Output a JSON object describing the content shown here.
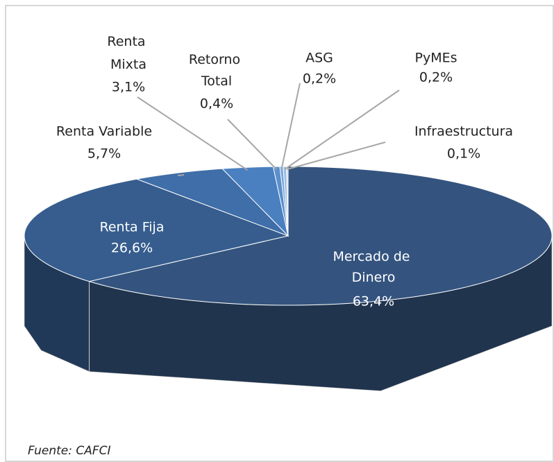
{
  "chart_data": {
    "type": "pie",
    "categories": [
      "Mercado de Dinero",
      "Renta Fija",
      "Renta Variable",
      "Renta Mixta",
      "Retorno Total",
      "ASG",
      "PyMEs",
      "Infraestructura"
    ],
    "values": [
      63.4,
      26.6,
      5.7,
      3.1,
      0.4,
      0.2,
      0.2,
      0.1
    ],
    "value_labels": [
      "63,4%",
      "26,6%",
      "5,7%",
      "3,1%",
      "0,4%",
      "0,2%",
      "0,2%",
      "0,1%"
    ],
    "colors": [
      "#34547f",
      "#365d8e",
      "#3f6ea8",
      "#4a80c0",
      "#5a8fcc",
      "#7aa6d8",
      "#9dbde3",
      "#c0d4ec"
    ],
    "source": "Fuente: CAFCI"
  }
}
